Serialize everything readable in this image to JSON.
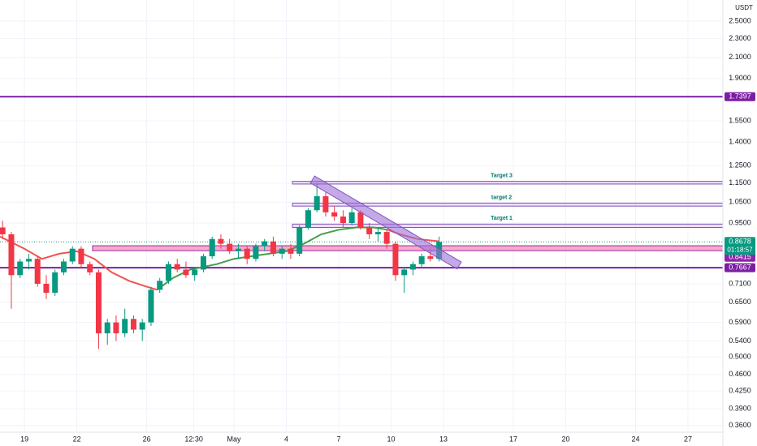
{
  "chart_data": {
    "type": "candlestick",
    "log_scale": true,
    "grid": true,
    "currency": "USDT",
    "up_color": "#089981",
    "down_color": "#f23645",
    "xlim": [
      17.6,
      59
    ],
    "ylim": [
      0.346,
      2.765
    ],
    "xticks": [
      {
        "value": 19,
        "label": "19"
      },
      {
        "value": 22,
        "label": "22"
      },
      {
        "value": 26,
        "label": "26"
      },
      {
        "value": 28.7,
        "label": "12:30"
      },
      {
        "value": 31,
        "label": "May"
      },
      {
        "value": 34,
        "label": "4"
      },
      {
        "value": 37,
        "label": "7"
      },
      {
        "value": 40,
        "label": "10"
      },
      {
        "value": 43,
        "label": "13"
      },
      {
        "value": 47,
        "label": "17"
      },
      {
        "value": 50,
        "label": "20"
      },
      {
        "value": 54,
        "label": "24"
      },
      {
        "value": 57,
        "label": "27"
      }
    ],
    "yticks": [
      {
        "value": 2.5,
        "label": "2.5000"
      },
      {
        "value": 2.3,
        "label": "2.3000"
      },
      {
        "value": 2.1,
        "label": "2.1000"
      },
      {
        "value": 1.9,
        "label": "1.9000"
      },
      {
        "value": 1.55,
        "label": "1.5500"
      },
      {
        "value": 1.4,
        "label": "1.4000"
      },
      {
        "value": 1.25,
        "label": "1.2500"
      },
      {
        "value": 1.15,
        "label": "1.1500"
      },
      {
        "value": 1.05,
        "label": "1.0500"
      },
      {
        "value": 0.95,
        "label": "0.9500"
      },
      {
        "value": 0.71,
        "label": "0.7100"
      },
      {
        "value": 0.65,
        "label": "0.6500"
      },
      {
        "value": 0.59,
        "label": "0.5900"
      },
      {
        "value": 0.54,
        "label": "0.5400"
      },
      {
        "value": 0.5,
        "label": "0.5000"
      },
      {
        "value": 0.46,
        "label": "0.4600"
      },
      {
        "value": 0.425,
        "label": "0.4250"
      },
      {
        "value": 0.39,
        "label": "0.3900"
      },
      {
        "value": 0.36,
        "label": "0.3600"
      }
    ],
    "x": [
      17.75,
      18.25,
      18.75,
      19.25,
      19.75,
      20.25,
      20.75,
      21.25,
      21.75,
      22.25,
      22.75,
      23.25,
      23.75,
      24.25,
      24.75,
      25.25,
      25.75,
      26.25,
      26.75,
      27.25,
      27.75,
      28.25,
      28.75,
      29.25,
      29.75,
      30.25,
      30.75,
      31.25,
      31.75,
      32.25,
      32.75,
      33.25,
      33.75,
      34.25,
      34.75,
      35.25,
      35.75,
      36.25,
      36.75,
      37.25,
      37.75,
      38.25,
      38.75,
      39.25,
      39.75,
      40.25,
      40.75,
      41.25,
      41.75,
      42.25,
      42.75
    ],
    "open": [
      0.93,
      0.9,
      0.74,
      0.79,
      0.8,
      0.71,
      0.68,
      0.75,
      0.79,
      0.84,
      0.78,
      0.75,
      0.56,
      0.59,
      0.56,
      0.6,
      0.57,
      0.59,
      0.69,
      0.72,
      0.78,
      0.76,
      0.74,
      0.76,
      0.81,
      0.88,
      0.86,
      0.83,
      0.84,
      0.8,
      0.85,
      0.87,
      0.82,
      0.84,
      0.82,
      0.93,
      1.01,
      1.08,
      1.0,
      0.98,
      0.95,
      1.0,
      0.93,
      0.9,
      0.91,
      0.86,
      0.74,
      0.76,
      0.78,
      0.81,
      0.8
    ],
    "high": [
      0.96,
      0.91,
      0.8,
      0.82,
      0.81,
      0.74,
      0.76,
      0.8,
      0.85,
      0.85,
      0.79,
      0.76,
      0.6,
      0.61,
      0.63,
      0.61,
      0.6,
      0.7,
      0.73,
      0.79,
      0.8,
      0.79,
      0.77,
      0.82,
      0.89,
      0.9,
      0.88,
      0.86,
      0.85,
      0.86,
      0.88,
      0.89,
      0.85,
      0.86,
      0.94,
      1.02,
      1.15,
      1.1,
      1.03,
      1.01,
      1.02,
      1.01,
      0.95,
      0.93,
      0.92,
      0.87,
      0.77,
      0.79,
      0.82,
      0.84,
      0.89
    ],
    "low": [
      0.88,
      0.63,
      0.73,
      0.76,
      0.7,
      0.66,
      0.67,
      0.74,
      0.78,
      0.77,
      0.74,
      0.52,
      0.53,
      0.54,
      0.55,
      0.56,
      0.54,
      0.58,
      0.68,
      0.71,
      0.75,
      0.73,
      0.72,
      0.75,
      0.8,
      0.84,
      0.82,
      0.8,
      0.78,
      0.79,
      0.83,
      0.81,
      0.8,
      0.8,
      0.81,
      0.92,
      1.0,
      0.98,
      0.96,
      0.93,
      0.94,
      0.92,
      0.88,
      0.87,
      0.84,
      0.72,
      0.68,
      0.74,
      0.77,
      0.79,
      0.79
    ],
    "close": [
      0.9,
      0.74,
      0.79,
      0.8,
      0.71,
      0.68,
      0.75,
      0.79,
      0.84,
      0.78,
      0.75,
      0.56,
      0.59,
      0.56,
      0.6,
      0.57,
      0.59,
      0.69,
      0.72,
      0.78,
      0.76,
      0.74,
      0.76,
      0.81,
      0.88,
      0.86,
      0.83,
      0.84,
      0.8,
      0.85,
      0.87,
      0.82,
      0.84,
      0.82,
      0.93,
      1.01,
      1.08,
      1.0,
      0.98,
      0.95,
      1.0,
      0.93,
      0.9,
      0.91,
      0.86,
      0.74,
      0.76,
      0.78,
      0.81,
      0.8,
      0.8678
    ],
    "lines": [
      {
        "color": "#ef5350",
        "x": [
          17.6,
          19,
          20,
          21,
          22,
          23,
          24,
          25,
          26,
          26.6
        ],
        "values": [
          0.89,
          0.84,
          0.8,
          0.82,
          0.83,
          0.8,
          0.75,
          0.72,
          0.7,
          0.69
        ]
      },
      {
        "color": "#43a047",
        "x": [
          26.6,
          27.5,
          28.5,
          30,
          31,
          32,
          33,
          34,
          35,
          36,
          37,
          38,
          39,
          39.8
        ],
        "values": [
          0.69,
          0.73,
          0.76,
          0.78,
          0.8,
          0.81,
          0.82,
          0.83,
          0.86,
          0.9,
          0.92,
          0.93,
          0.93,
          0.92
        ]
      },
      {
        "color": "#ef5350",
        "x": [
          39.8,
          40.5,
          41.5,
          42.75
        ],
        "values": [
          0.92,
          0.9,
          0.88,
          0.87
        ]
      }
    ],
    "hlines": [
      {
        "value": 1.7397,
        "color": "#7b1fa2"
      },
      {
        "value": 0.7667,
        "color": "#7b1fa2"
      }
    ],
    "zone": {
      "x": [
        22.9,
        59
      ],
      "low": 0.832,
      "high": 0.852,
      "value": 0.8415,
      "color": "#f48fb1"
    },
    "current_price": 0.8678,
    "countdown": "01:18:57",
    "targets": [
      {
        "label": "Target 1",
        "x": [
          34.35,
          59
        ],
        "low": 0.93,
        "high": 0.945
      },
      {
        "label": "target 2",
        "x": [
          34.35,
          59
        ],
        "low": 1.03,
        "high": 1.045
      },
      {
        "label": "Target 3",
        "x": [
          34.35,
          59
        ],
        "low": 1.145,
        "high": 1.16
      }
    ],
    "trendline": {
      "x": [
        35.5,
        43.9
      ],
      "values": [
        1.17,
        0.775
      ],
      "color": "#9c6fd6"
    }
  }
}
